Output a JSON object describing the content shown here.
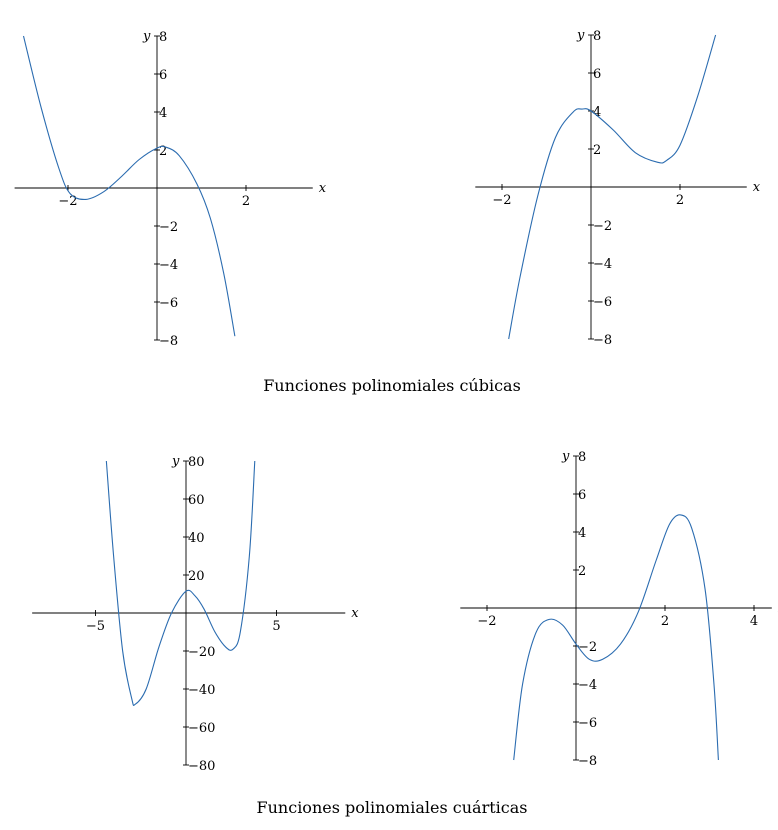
{
  "captions": {
    "cubic": "Funciones polinomiales cúbicas",
    "quartic": "Funciones polinomiales cuárticas"
  },
  "colors": {
    "curve": "#2b6cb0",
    "axis": "#000000"
  },
  "chart_data": [
    {
      "type": "line",
      "title": "",
      "xlabel": "x",
      "ylabel": "y",
      "xlim": [
        -3.2,
        3.5
      ],
      "ylim": [
        -8,
        8
      ],
      "xticks": [
        -2,
        2
      ],
      "yticks": [
        -8,
        -6,
        -4,
        -2,
        2,
        4,
        6,
        8
      ],
      "series": [
        {
          "x": [
            -3.0,
            -2.6,
            -2.2,
            -1.95,
            -1.6,
            -1.2,
            -0.8,
            -0.4,
            0.0,
            0.2,
            0.5,
            0.9,
            1.2,
            1.5,
            1.75
          ],
          "y": [
            8.0,
            4.2,
            1.0,
            -0.3,
            -0.6,
            -0.2,
            0.6,
            1.5,
            2.1,
            2.15,
            1.7,
            0.2,
            -1.6,
            -4.5,
            -7.8
          ]
        }
      ]
    },
    {
      "type": "line",
      "title": "",
      "xlabel": "x",
      "ylabel": "y",
      "xlim": [
        -2.6,
        3.5
      ],
      "ylim": [
        -8,
        8
      ],
      "xticks": [
        -2,
        2
      ],
      "yticks": [
        -8,
        -6,
        -4,
        -2,
        2,
        4,
        6,
        8
      ],
      "series": [
        {
          "x": [
            -1.85,
            -1.6,
            -1.2,
            -0.8,
            -0.4,
            -0.2,
            0.0,
            0.5,
            1.0,
            1.5,
            1.7,
            2.0,
            2.4,
            2.8
          ],
          "y": [
            -8.0,
            -4.8,
            -0.5,
            2.6,
            3.95,
            4.1,
            4.0,
            3.0,
            1.8,
            1.3,
            1.4,
            2.2,
            4.8,
            8.0
          ]
        }
      ]
    },
    {
      "type": "line",
      "title": "",
      "xlabel": "x",
      "ylabel": "y",
      "xlim": [
        -8.5,
        8.8
      ],
      "ylim": [
        -80,
        80
      ],
      "xticks": [
        -5,
        5
      ],
      "yticks": [
        -80,
        -60,
        -40,
        -20,
        20,
        40,
        60,
        80
      ],
      "series": [
        {
          "x": [
            -4.4,
            -4.0,
            -3.5,
            -3.0,
            -2.8,
            -2.2,
            -1.5,
            -0.8,
            0.0,
            0.5,
            1.0,
            1.6,
            2.2,
            2.6,
            3.0,
            3.5,
            3.8
          ],
          "y": [
            80.0,
            30.0,
            -20.0,
            -45.0,
            -48.0,
            -40.0,
            -18.0,
            0.0,
            11.5,
            9.0,
            2.0,
            -10.0,
            -18.0,
            -19.0,
            -10.0,
            30.0,
            80.0
          ]
        }
      ]
    },
    {
      "type": "line",
      "title": "",
      "xlabel": "x",
      "ylabel": "y",
      "xlim": [
        -2.6,
        4.4
      ],
      "ylim": [
        -8,
        8
      ],
      "xticks": [
        -2,
        2,
        4
      ],
      "yticks": [
        -8,
        -6,
        -4,
        -2,
        2,
        4,
        6,
        8
      ],
      "series": [
        {
          "x": [
            -1.4,
            -1.2,
            -0.9,
            -0.6,
            -0.3,
            0.0,
            0.3,
            0.6,
            1.0,
            1.4,
            1.8,
            2.1,
            2.35,
            2.6,
            2.9,
            3.1,
            3.2
          ],
          "y": [
            -8.0,
            -4.0,
            -1.3,
            -0.6,
            -0.9,
            -1.9,
            -2.7,
            -2.7,
            -1.9,
            -0.2,
            2.5,
            4.4,
            4.9,
            4.2,
            1.0,
            -4.0,
            -8.0
          ]
        }
      ]
    }
  ]
}
